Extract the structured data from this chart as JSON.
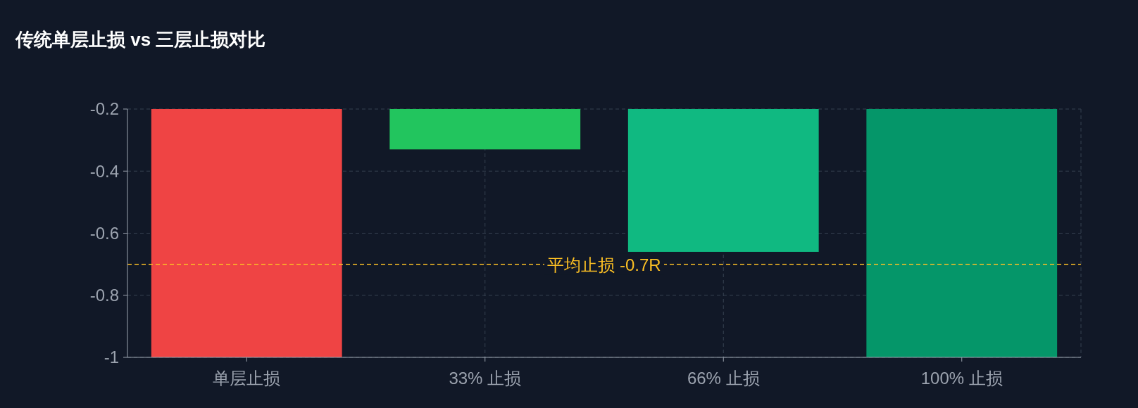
{
  "chart_data": {
    "type": "bar",
    "title": "传统单层止损 vs 三层止损对比",
    "categories": [
      "单层止损",
      "33% 止损",
      "66% 止损",
      "100% 止损"
    ],
    "values": [
      -1,
      -0.33,
      -0.66,
      -1
    ],
    "colors": [
      "#ef4444",
      "#22c55e",
      "#10b981",
      "#059669"
    ],
    "ylim": [
      -1,
      -0.2
    ],
    "yticks": [
      -1,
      -0.8,
      -0.6,
      -0.4,
      -0.2
    ],
    "grid": true,
    "ref_lines": [
      {
        "axis": "y",
        "value": -0.7,
        "label": "平均止损 -0.7R",
        "color": "#fbbf24",
        "line_style": "dashed"
      }
    ]
  }
}
